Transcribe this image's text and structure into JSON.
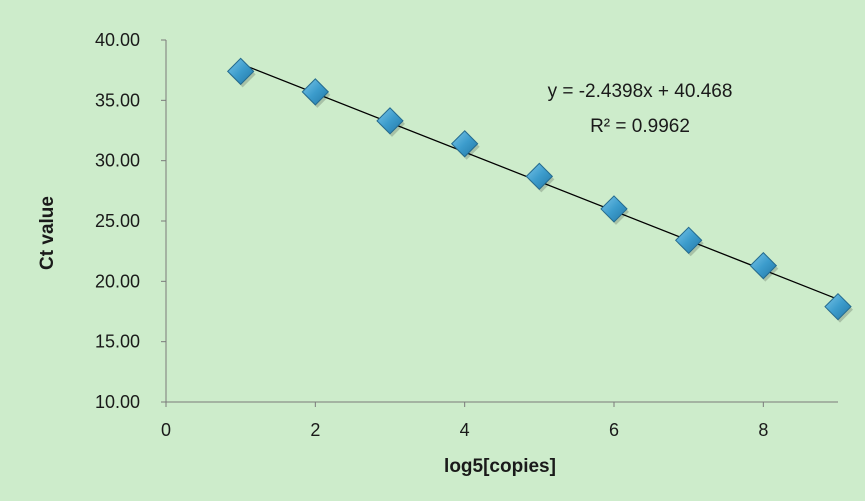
{
  "chart_data": {
    "type": "scatter",
    "title": "",
    "xlabel": "log5[copies]",
    "ylabel": "Ct value",
    "xlim": [
      0,
      9
    ],
    "ylim": [
      10,
      40
    ],
    "x_ticks": [
      "0",
      "2",
      "4",
      "6",
      "8"
    ],
    "y_ticks": [
      "10.00",
      "15.00",
      "20.00",
      "25.00",
      "30.00",
      "35.00",
      "40.00"
    ],
    "grid": false,
    "legend": "none",
    "series": [
      {
        "x": [
          1,
          2,
          3,
          4,
          5,
          6,
          7,
          8,
          9
        ],
        "y": [
          37.4,
          35.7,
          33.3,
          31.4,
          28.7,
          26.0,
          23.4,
          21.3,
          17.9
        ]
      }
    ],
    "trendline": {
      "type": "linear",
      "slope": -2.4398,
      "intercept": 40.468,
      "x_range": [
        1,
        9
      ]
    },
    "annotations": {
      "equation": "y = -2.4398x + 40.468",
      "r_squared": "R² = 0.9962"
    },
    "colors": {
      "background": "#cdeccb",
      "marker_fill": "#3c9ccc",
      "marker_stroke": "#246a8e",
      "trendline": "#000000",
      "axis": "#7a7a7a"
    }
  }
}
